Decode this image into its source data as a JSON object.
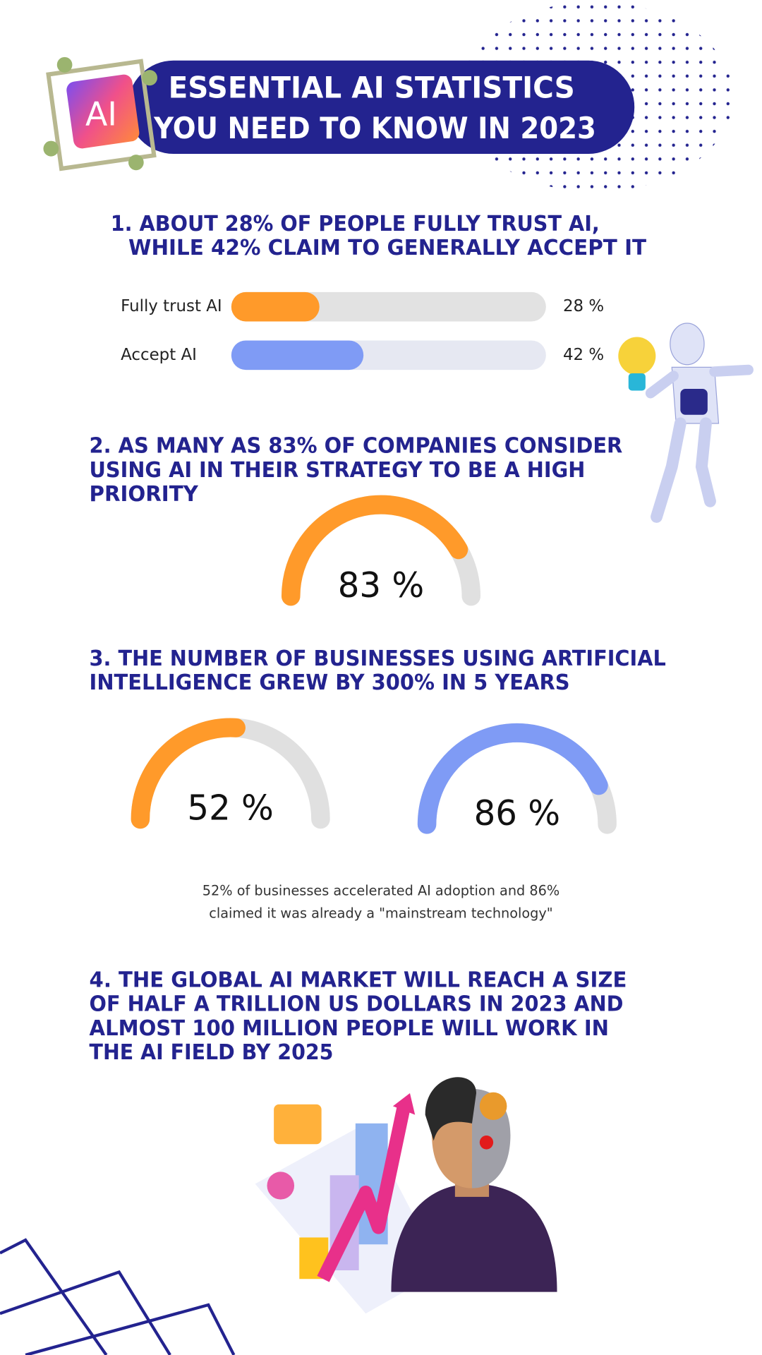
{
  "header": {
    "badge": "AI",
    "title_lines": [
      "ESSENTIAL AI STATISTICS",
      "YOU NEED TO KNOW IN 2023"
    ]
  },
  "sections": [
    {
      "heading_lines": [
        "1. ABOUT 28% OF PEOPLE FULLY TRUST AI,",
        "WHILE 42% CLAIM TO GENERALLY ACCEPT IT"
      ]
    },
    {
      "heading_lines": [
        "2. AS MANY AS 83% OF COMPANIES CONSIDER",
        "USING AI IN THEIR STRATEGY TO BE A HIGH",
        "PRIORITY"
      ]
    },
    {
      "heading_lines": [
        "3. THE NUMBER OF BUSINESSES USING ARTIFICIAL",
        "INTELLIGENCE GREW BY 300% IN 5 YEARS"
      ],
      "caption_lines": [
        "52% of businesses accelerated AI adoption and 86%",
        "claimed it was already a \"mainstream technology\""
      ]
    },
    {
      "heading_lines": [
        "4. THE GLOBAL AI MARKET WILL REACH A SIZE",
        "OF HALF A TRILLION US DOLLARS IN 2023 AND",
        "ALMOST 100 MILLION PEOPLE WILL WORK IN",
        "THE AI FIELD BY 2025"
      ]
    }
  ],
  "chart_data": [
    {
      "type": "bar",
      "categories": [
        "Fully trust AI",
        "Accept AI"
      ],
      "values": [
        28,
        42
      ],
      "value_labels": [
        "28 %",
        "42 %"
      ],
      "colors": [
        "#ff9a2a",
        "#7f9bf5"
      ],
      "xlim": [
        0,
        100
      ]
    },
    {
      "type": "gauge",
      "values": [
        83
      ],
      "value_labels": [
        "83 %"
      ],
      "color": "#ff9a2a",
      "ylim": [
        0,
        100
      ]
    },
    {
      "type": "gauge",
      "values": [
        52
      ],
      "value_labels": [
        "52 %"
      ],
      "color": "#ff9a2a",
      "ylim": [
        0,
        100
      ]
    },
    {
      "type": "gauge",
      "values": [
        86
      ],
      "value_labels": [
        "86 %"
      ],
      "color": "#7f9bf5",
      "ylim": [
        0,
        100
      ]
    }
  ]
}
